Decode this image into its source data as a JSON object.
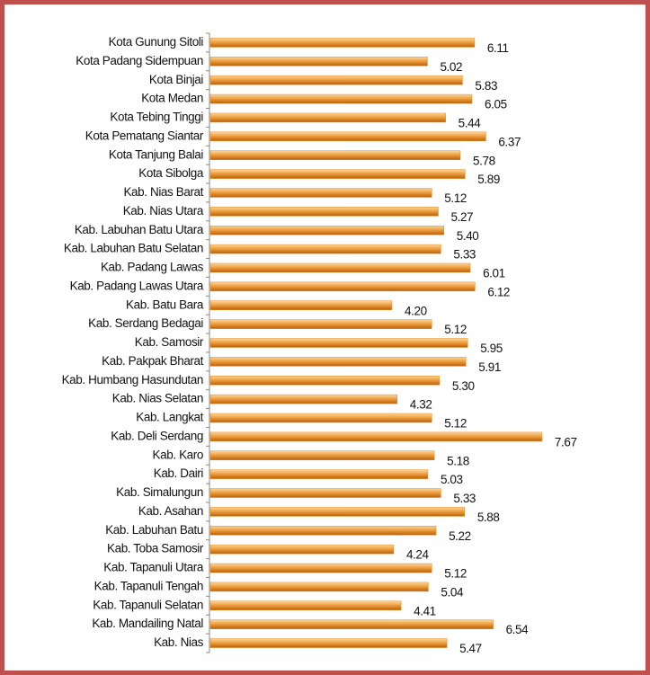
{
  "chart_data": {
    "type": "bar",
    "orientation": "horizontal",
    "categories": [
      "Kota Gunung Sitoli",
      "Kota Padang Sidempuan",
      "Kota Binjai",
      "Kota Medan",
      "Kota Tebing Tinggi",
      "Kota Pematang Siantar",
      "Kota Tanjung Balai",
      "Kota Sibolga",
      "Kab. Nias Barat",
      "Kab. Nias Utara",
      "Kab. Labuhan Batu Utara",
      "Kab. Labuhan Batu Selatan",
      "Kab. Padang Lawas",
      "Kab. Padang Lawas Utara",
      "Kab. Batu Bara",
      "Kab. Serdang Bedagai",
      "Kab. Samosir",
      "Kab. Pakpak Bharat",
      "Kab. Humbang Hasundutan",
      "Kab. Nias Selatan",
      "Kab. Langkat",
      "Kab. Deli Serdang",
      "Kab. Karo",
      "Kab. Dairi",
      "Kab. Simalungun",
      "Kab. Asahan",
      "Kab. Labuhan Batu",
      "Kab. Toba Samosir",
      "Kab. Tapanuli Utara",
      "Kab. Tapanuli Tengah",
      "Kab. Tapanuli Selatan",
      "Kab. Mandailing Natal",
      "Kab. Nias"
    ],
    "values": [
      6.11,
      5.02,
      5.83,
      6.05,
      5.44,
      6.37,
      5.78,
      5.89,
      5.12,
      5.27,
      5.4,
      5.33,
      6.01,
      6.12,
      4.2,
      5.12,
      5.95,
      5.91,
      5.3,
      4.32,
      5.12,
      7.67,
      5.18,
      5.03,
      5.33,
      5.88,
      5.22,
      4.24,
      5.12,
      5.04,
      4.41,
      6.54,
      5.47
    ],
    "value_labels": [
      "6.11",
      "5.02",
      "5.83",
      "6.05",
      "5.44",
      "6.37",
      "5.78",
      "5.89",
      "5.12",
      "5.27",
      "5.40",
      "5.33",
      "6.01",
      "6.12",
      "4.20",
      "5.12",
      "5.95",
      "5.91",
      "5.30",
      "4.32",
      "5.12",
      "7.67",
      "5.18",
      "5.03",
      "5.33",
      "5.88",
      "5.22",
      "4.24",
      "5.12",
      "5.04",
      "4.41",
      "6.54",
      "5.47"
    ],
    "color": "#e98a1b",
    "xlim": [
      0,
      10
    ]
  }
}
